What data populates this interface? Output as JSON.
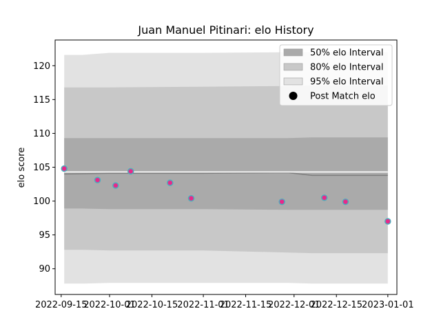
{
  "chart_data": {
    "type": "line",
    "title": "Juan Manuel Pitinari: elo History",
    "xlabel": "",
    "ylabel": "elo score",
    "xlim": [
      "2022-09-13",
      "2023-01-04"
    ],
    "ylim": [
      86.2,
      123.8
    ],
    "x_ticks": [
      "2022-09-15",
      "2022-10-01",
      "2022-10-15",
      "2022-11-01",
      "2022-11-15",
      "2022-12-01",
      "2022-12-15",
      "2023-01-01"
    ],
    "y_ticks": [
      90,
      95,
      100,
      105,
      110,
      115,
      120
    ],
    "legend_position": "top-right",
    "legend": [
      {
        "label": "50% elo Interval",
        "color": "#aaaaaa"
      },
      {
        "label": "80% elo Interval",
        "color": "#c8c8c8"
      },
      {
        "label": "95% elo Interval",
        "color": "#e2e2e2"
      },
      {
        "label": "Post Match elo",
        "color": "#000000"
      }
    ],
    "bands": {
      "x": [
        "2022-09-16",
        "2022-09-22",
        "2022-10-01",
        "2022-11-01",
        "2022-11-29",
        "2022-12-07",
        "2023-01-01"
      ],
      "ci95_upper": [
        121.6,
        121.6,
        121.9,
        121.9,
        122.0,
        122.0,
        122.0
      ],
      "ci95_lower": [
        87.8,
        87.8,
        87.9,
        87.9,
        87.9,
        87.8,
        87.8
      ],
      "ci80_upper": [
        116.8,
        116.8,
        116.8,
        116.9,
        117.0,
        117.1,
        117.1
      ],
      "ci80_lower": [
        92.8,
        92.8,
        92.7,
        92.7,
        92.4,
        92.3,
        92.3
      ],
      "ci50_upper": [
        109.3,
        109.3,
        109.3,
        109.3,
        109.3,
        109.4,
        109.4
      ],
      "ci50_lower": [
        98.9,
        98.9,
        98.8,
        98.8,
        98.7,
        98.7,
        98.7
      ]
    },
    "series": [
      {
        "type": "line",
        "color": "#808080",
        "x": [
          "2022-09-16",
          "2022-10-01",
          "2022-11-01",
          "2022-11-29",
          "2022-12-07",
          "2023-01-01"
        ],
        "values": [
          104.0,
          104.1,
          104.1,
          104.2,
          103.8,
          103.8
        ]
      },
      {
        "type": "line",
        "color": "#ffffff",
        "x": [
          "2022-09-16",
          "2023-01-01"
        ],
        "values": [
          104.3,
          104.3
        ]
      },
      {
        "type": "scatter",
        "fill": "#e7298a",
        "edge": "#4dafbd",
        "x": [
          "2022-09-16",
          "2022-09-27",
          "2022-10-03",
          "2022-10-08",
          "2022-10-21",
          "2022-10-28",
          "2022-11-27",
          "2022-12-11",
          "2022-12-18",
          "2023-01-01"
        ],
        "values": [
          104.8,
          103.1,
          102.3,
          104.4,
          102.7,
          100.4,
          99.9,
          100.5,
          99.9,
          97.0
        ]
      }
    ]
  }
}
